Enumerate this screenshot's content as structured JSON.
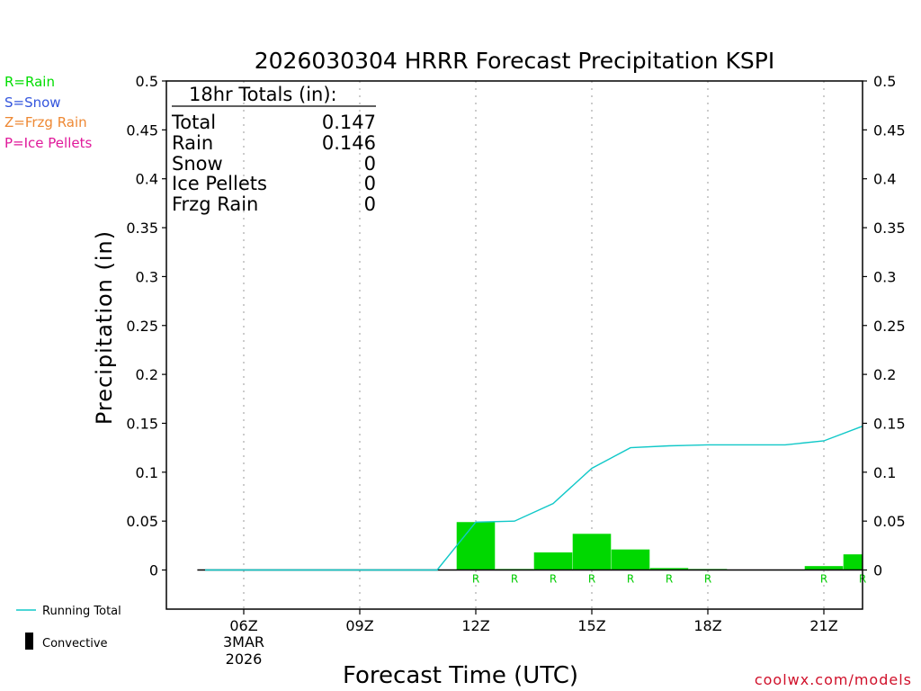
{
  "colors": {
    "rain": "#00dd00",
    "snow": "#3355dd",
    "frzg": "#ee8833",
    "ice": "#e0189a",
    "running_total": "#10c8c8",
    "bar": "#00d800",
    "credit": "#d0102a"
  },
  "ptype_legend": [
    {
      "text": "R=Rain",
      "color": "#00dd00"
    },
    {
      "text": "S=Snow",
      "color": "#3355dd"
    },
    {
      "text": "Z=Frzg Rain",
      "color": "#ee8833"
    },
    {
      "text": "P=Ice Pellets",
      "color": "#e0189a"
    }
  ],
  "totals": {
    "header": "18hr Totals (in):",
    "rows": [
      {
        "label": "Total",
        "value": "0.147"
      },
      {
        "label": "Rain",
        "value": "0.146"
      },
      {
        "label": "Snow",
        "value": "0"
      },
      {
        "label": "Ice Pellets",
        "value": "0"
      },
      {
        "label": "Frzg Rain",
        "value": "0"
      }
    ]
  },
  "bottom_legend": {
    "running_total": "Running Total",
    "convective": "Convective"
  },
  "credit": "coolwx.com/models",
  "chart_data": {
    "type": "bar",
    "title": "2026030304 HRRR Forecast Precipitation KSPI",
    "xlabel": "Forecast Time (UTC)",
    "ylabel": "Precipitation (in)",
    "ylim": [
      -0.04,
      0.5
    ],
    "xlim_hours": [
      4,
      22
    ],
    "y_ticks": [
      "0",
      "0.05",
      "0.1",
      "0.15",
      "0.2",
      "0.25",
      "0.3",
      "0.35",
      "0.4",
      "0.45",
      "0.5"
    ],
    "x_ticks": [
      {
        "hour": 6,
        "label": "06Z",
        "sub1": "3MAR",
        "sub2": "2026"
      },
      {
        "hour": 9,
        "label": "09Z"
      },
      {
        "hour": 12,
        "label": "12Z"
      },
      {
        "hour": 15,
        "label": "15Z"
      },
      {
        "hour": 18,
        "label": "18Z"
      },
      {
        "hour": 21,
        "label": "21Z"
      }
    ],
    "grid": "vertical dotted",
    "bars": [
      {
        "hour": 12,
        "value": 0.049,
        "ptype": "R"
      },
      {
        "hour": 13,
        "value": 0.001,
        "ptype": "R"
      },
      {
        "hour": 14,
        "value": 0.018,
        "ptype": "R"
      },
      {
        "hour": 15,
        "value": 0.037,
        "ptype": "R"
      },
      {
        "hour": 16,
        "value": 0.021,
        "ptype": "R"
      },
      {
        "hour": 17,
        "value": 0.002,
        "ptype": "R"
      },
      {
        "hour": 18,
        "value": 0.001,
        "ptype": "R"
      },
      {
        "hour": 21,
        "value": 0.004,
        "ptype": "R"
      },
      {
        "hour": 22,
        "value": 0.016,
        "ptype": "R"
      }
    ],
    "series": [
      {
        "name": "Running Total",
        "x": [
          5,
          6,
          7,
          8,
          9,
          10,
          11,
          12,
          13,
          14,
          15,
          16,
          17,
          18,
          19,
          20,
          21,
          22
        ],
        "values": [
          0,
          0,
          0,
          0,
          0,
          0,
          0,
          0.049,
          0.05,
          0.068,
          0.104,
          0.125,
          0.127,
          0.128,
          0.128,
          0.128,
          0.132,
          0.147
        ]
      }
    ],
    "convective_x": [
      4.8,
      22
    ]
  }
}
